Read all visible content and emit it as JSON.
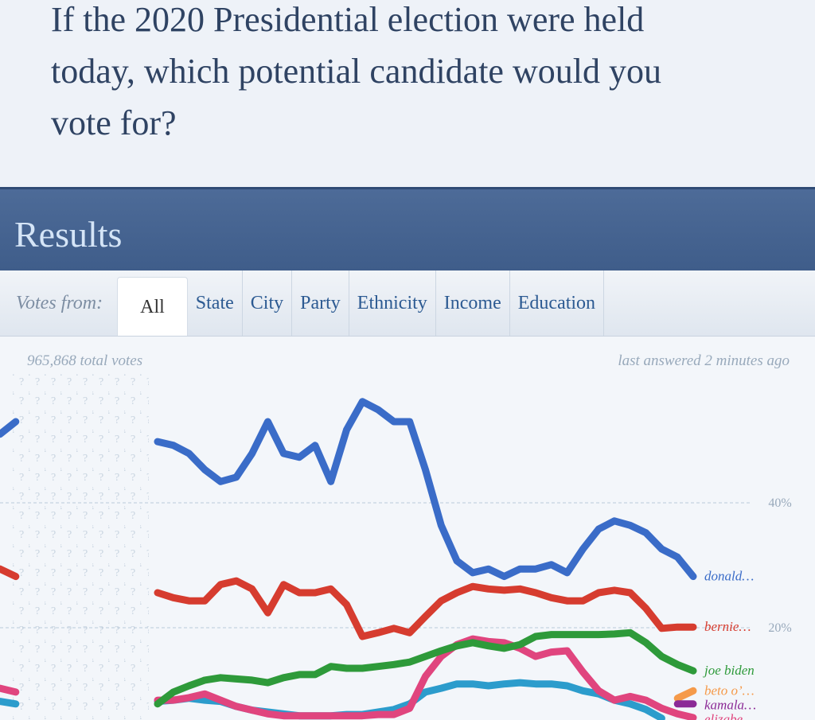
{
  "question": "If the 2020 Presidential election were held today, which potential candidate would you vote for?",
  "results_title": "Results",
  "filter_label": "Votes from:",
  "tabs": [
    "All",
    "State",
    "City",
    "Party",
    "Ethnicity",
    "Income",
    "Education"
  ],
  "total_votes": "965,868 total votes",
  "last_answered": "last answered 2 minutes ago",
  "chart_data": {
    "type": "line",
    "categories": [
      null,
      null,
      null,
      null,
      null,
      null,
      null,
      null,
      null,
      null,
      null,
      null,
      null,
      null,
      null,
      null,
      null,
      null,
      null,
      null,
      null,
      null,
      null,
      null,
      null,
      null,
      null,
      null,
      null,
      null,
      null,
      null,
      null,
      null,
      null,
      null,
      null,
      null,
      null,
      null,
      null,
      null,
      null,
      null,
      null
    ],
    "series": [
      {
        "color": "#2c9ccc",
        "values": [
          8.2,
          7.8,
          null,
          null,
          null,
          null,
          null,
          null,
          null,
          null,
          8.2,
          8.4,
          8.7,
          8.4,
          8.2,
          7.4,
          6.8,
          6.5,
          6.2,
          5.9,
          5.9,
          5.9,
          6.1,
          6.1,
          6.5,
          6.9,
          7.8,
          9.7,
          10.3,
          11,
          11,
          10.7,
          11,
          11.2,
          11,
          11,
          10.7,
          9.9,
          9.4,
          8.4,
          7.8,
          6.9,
          5.5,
          null,
          null
        ]
      },
      {
        "name": "elizabe…",
        "color": "#e0457e",
        "values": [
          10.3,
          9.7,
          null,
          null,
          null,
          null,
          null,
          null,
          null,
          null,
          8.4,
          8.4,
          8.8,
          9.4,
          8.4,
          7.4,
          6.8,
          6.2,
          5.9,
          5.9,
          5.9,
          5.9,
          5.9,
          5.9,
          6.1,
          6.1,
          7.1,
          12.2,
          15.4,
          17.3,
          18.2,
          17.8,
          17.6,
          16.7,
          15.4,
          16.1,
          16.3,
          12.9,
          9.9,
          8.4,
          9,
          8.4,
          7.1,
          6.2,
          5.6
        ]
      },
      {
        "name": "joe biden",
        "color": "#2e9a3a",
        "values": [
          null,
          null,
          null,
          null,
          null,
          null,
          null,
          null,
          null,
          null,
          7.8,
          9.7,
          10.7,
          11.6,
          12,
          11.8,
          11.6,
          11.2,
          12,
          12.5,
          12.5,
          13.8,
          13.5,
          13.5,
          13.8,
          14.1,
          14.5,
          15.4,
          16.3,
          17.1,
          17.6,
          17.1,
          16.7,
          17.3,
          18.6,
          18.9,
          18.9,
          18.9,
          18.9,
          19,
          19.2,
          17.6,
          15.4,
          14.1,
          13.1
        ]
      },
      {
        "name": "bernie…",
        "color": "#d63c2f",
        "values": [
          29.4,
          28.2,
          null,
          null,
          null,
          null,
          null,
          null,
          null,
          null,
          25.6,
          24.8,
          24.3,
          24.3,
          26.9,
          27.5,
          26.2,
          22.4,
          26.9,
          25.6,
          25.6,
          26.2,
          23.7,
          18.6,
          19.2,
          19.9,
          19.2,
          21.8,
          24.3,
          25.6,
          26.6,
          26.2,
          26,
          26.2,
          25.6,
          24.8,
          24.3,
          24.3,
          25.6,
          26,
          25.6,
          23.1,
          19.9,
          20.1,
          20.1
        ]
      },
      {
        "name": "donald…",
        "color": "#3a6cc8",
        "values": [
          51,
          53,
          null,
          null,
          null,
          null,
          null,
          null,
          null,
          null,
          49.8,
          49.2,
          47.9,
          45.3,
          43.4,
          44.1,
          47.9,
          53,
          47.9,
          47.3,
          49.2,
          43.4,
          51.7,
          56.2,
          54.9,
          53,
          53,
          45.3,
          36.4,
          30.7,
          28.8,
          29.4,
          28.2,
          29.4,
          29.4,
          30.1,
          28.8,
          32.6,
          35.8,
          37.1,
          36.4,
          35.2,
          32.6,
          31.3,
          28.2
        ]
      },
      {
        "name": "beto o’…",
        "color": "#f59a4a",
        "values": [
          null,
          null,
          null,
          null,
          null,
          null,
          null,
          null,
          null,
          null,
          null,
          null,
          null,
          null,
          null,
          null,
          null,
          null,
          null,
          null,
          null,
          null,
          null,
          null,
          null,
          null,
          null,
          null,
          null,
          null,
          null,
          null,
          null,
          null,
          null,
          null,
          null,
          null,
          null,
          null,
          null,
          null,
          null,
          8.7,
          9.9
        ]
      },
      {
        "name": "kamala…",
        "color": "#8b2a96",
        "values": [
          null,
          null,
          null,
          null,
          null,
          null,
          null,
          null,
          null,
          null,
          null,
          null,
          null,
          null,
          null,
          null,
          null,
          null,
          null,
          null,
          null,
          null,
          null,
          null,
          null,
          null,
          null,
          null,
          null,
          null,
          null,
          null,
          null,
          null,
          null,
          null,
          null,
          null,
          null,
          null,
          null,
          null,
          null,
          7.8,
          7.8
        ]
      }
    ],
    "ylim": [
      5.3,
      60
    ],
    "yticks": [
      {
        "value": 20,
        "label": "20%"
      },
      {
        "value": 40,
        "label": "40%"
      }
    ],
    "grid": true
  }
}
